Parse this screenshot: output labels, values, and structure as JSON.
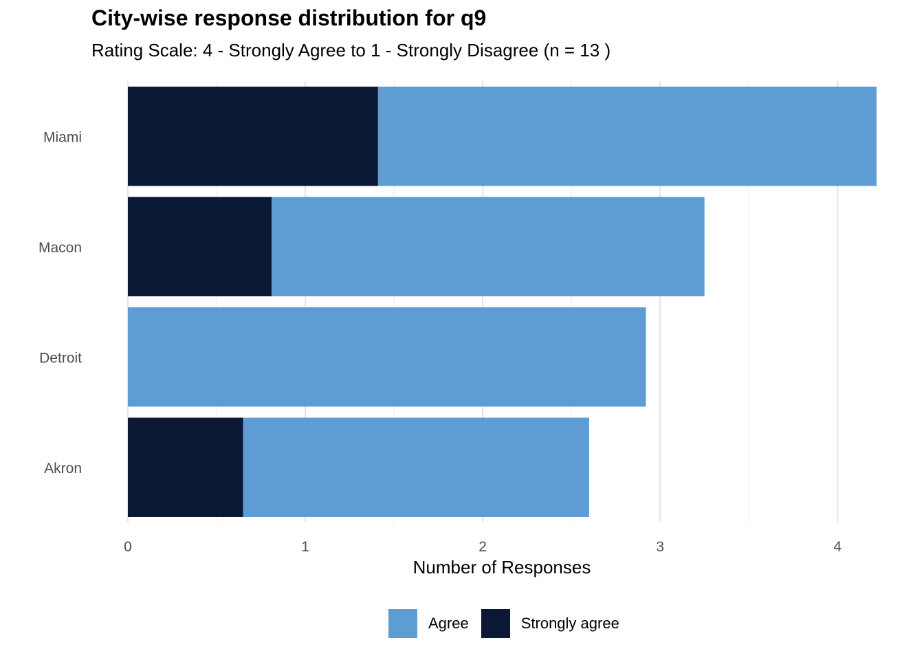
{
  "chart_data": {
    "type": "bar",
    "orientation": "horizontal",
    "stacked": true,
    "title": "City-wise response distribution for q9",
    "subtitle": "Rating Scale: 4 - Strongly Agree to 1 - Strongly Disagree (n = 13 )",
    "xlabel": "Number of Responses",
    "ylabel": "",
    "categories": [
      "Miami",
      "Macon",
      "Detroit",
      "Akron"
    ],
    "series": [
      {
        "name": "Strongly agree",
        "color": "#0A1833",
        "values": [
          1.41,
          0.81,
          0,
          0.65
        ]
      },
      {
        "name": "Agree",
        "color": "#5E9CD4",
        "values": [
          2.81,
          2.44,
          2.92,
          1.95
        ]
      }
    ],
    "xlim": [
      0,
      4.22
    ],
    "xticks": [
      0,
      1,
      2,
      3,
      4
    ],
    "xtick_labels": [
      "0",
      "1",
      "2",
      "3",
      "4"
    ],
    "grid": true,
    "legend": {
      "position": "bottom",
      "entries": [
        {
          "label": "Agree",
          "color": "#5E9CD4"
        },
        {
          "label": "Strongly agree",
          "color": "#0A1833"
        }
      ]
    }
  }
}
